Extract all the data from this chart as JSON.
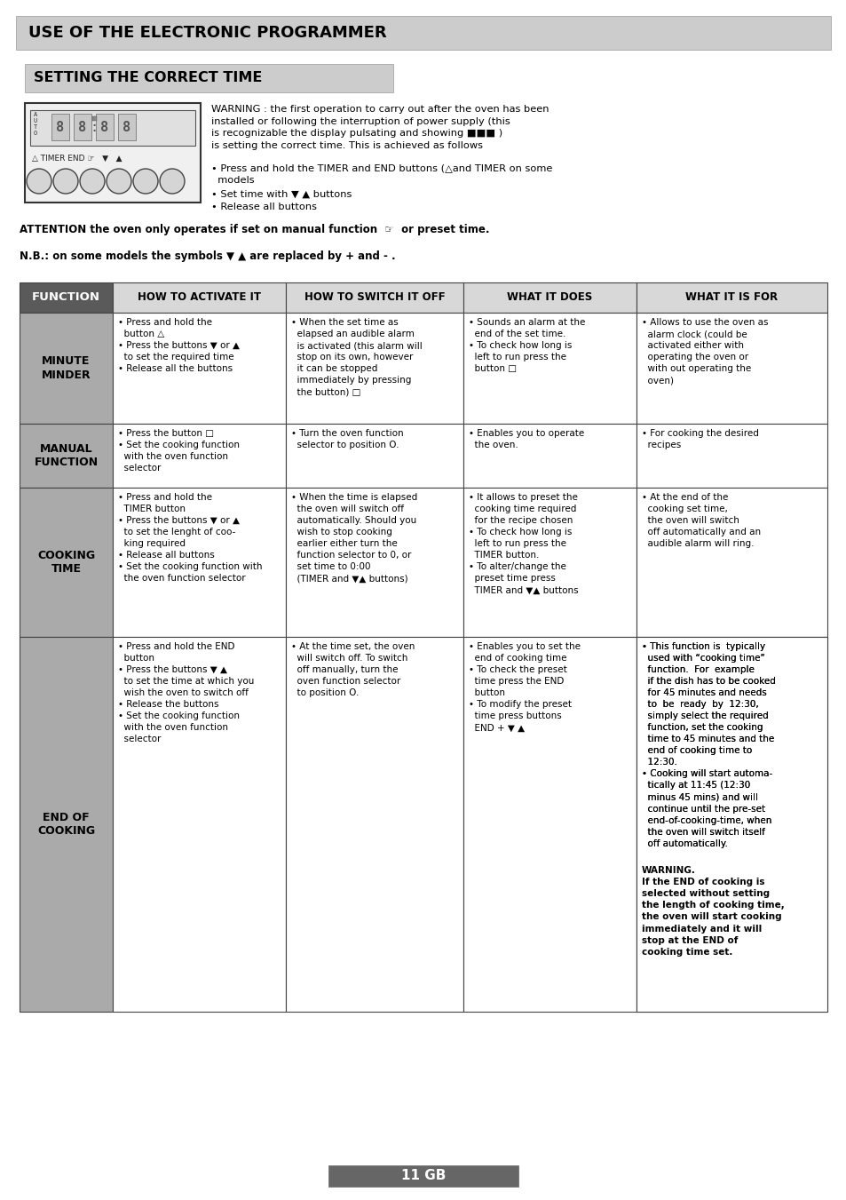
{
  "title1": "USE OF THE ELECTRONIC PROGRAMMER",
  "title2": "SETTING THE CORRECT TIME",
  "col_headers": [
    "FUNCTION",
    "HOW TO ACTIVATE IT",
    "HOW TO SWITCH IT OFF",
    "WHAT IT DOES",
    "WHAT IT IS FOR"
  ],
  "row_labels": [
    "MINUTE\nMINDER",
    "MANUAL\nFUNCTION",
    "COOKING\nTIME",
    "END OF\nCOOKING"
  ],
  "header_bg": "#5a5a5a",
  "header_fg": "#ffffff",
  "row_label_bg": "#aaaaaa",
  "row_label_fg": "#000000",
  "cell_bg": "#ffffff",
  "title1_bg": "#cccccc",
  "title2_bg": "#cccccc",
  "page_bg": "#ffffff",
  "footer_text": "11 GB",
  "table_data": [
    [
      "• Press and hold the\n  button △\n• Press the buttons ▼ or ▲\n  to set the required time\n• Release all the buttons",
      "• When the set time as\n  elapsed an audible alarm\n  is activated (this alarm will\n  stop on its own, however\n  it can be stopped\n  immediately by pressing\n  the button) □",
      "• Sounds an alarm at the\n  end of the set time.\n• To check how long is\n  left to run press the\n  button □",
      "• Allows to use the oven as\n  alarm clock (could be\n  activated either with\n  operating the oven or\n  with out operating the\n  oven)"
    ],
    [
      "• Press the button □\n• Set the cooking function\n  with the oven function\n  selector",
      "• Turn the oven function\n  selector to position O.",
      "• Enables you to operate\n  the oven.",
      "• For cooking the desired\n  recipes"
    ],
    [
      "• Press and hold the\n  TIMER button\n• Press the buttons ▼ or ▲\n  to set the lenght of coo-\n  king required\n• Release all buttons\n• Set the cooking function with\n  the oven function selector",
      "• When the time is elapsed\n  the oven will switch off\n  automatically. Should you\n  wish to stop cooking\n  earlier either turn the\n  function selector to 0, or\n  set time to 0:00\n  (TIMER and ▼▲ buttons)",
      "• It allows to preset the\n  cooking time required\n  for the recipe chosen\n• To check how long is\n  left to run press the\n  TIMER button.\n• To alter/change the\n  preset time press\n  TIMER and ▼▲ buttons",
      "• At the end of the\n  cooking set time,\n  the oven will switch\n  off automatically and an\n  audible alarm will ring."
    ],
    [
      "• Press and hold the END\n  button\n• Press the buttons ▼ ▲\n  to set the time at which you\n  wish the oven to switch off\n• Release the buttons\n• Set the cooking function\n  with the oven function\n  selector",
      "• At the time set, the oven\n  will switch off. To switch\n  off manually, turn the\n  oven function selector\n  to position O.",
      "• Enables you to set the\n  end of cooking time\n• To check the preset\n  time press the END\n  button\n• To modify the preset\n  time press buttons\n  END + ▼ ▲",
      "• This function is  typically\n  used with “cooking time”\n  function.  For  example\n  if the dish has to be cooked\n  for 45 minutes and needs\n  to  be  ready  by  12:30,\n  simply select the required\n  function, set the cooking\n  time to 45 minutes and the\n  end of cooking time to\n  12:30.\n• Cooking will start automa-\n  tically at 11:45 (12:30\n  minus 45 mins) and will\n  continue until the pre-set\n  end-of-cooking-time, when\n  the oven will switch itself\n  off automatically."
    ]
  ],
  "last_cell_bold": "WARNING.\nIf the END of cooking is\nselected without setting\nthe length of cooking time,\nthe oven will start cooking\nimmediately and it will\nstop at the END of\ncooking time set."
}
